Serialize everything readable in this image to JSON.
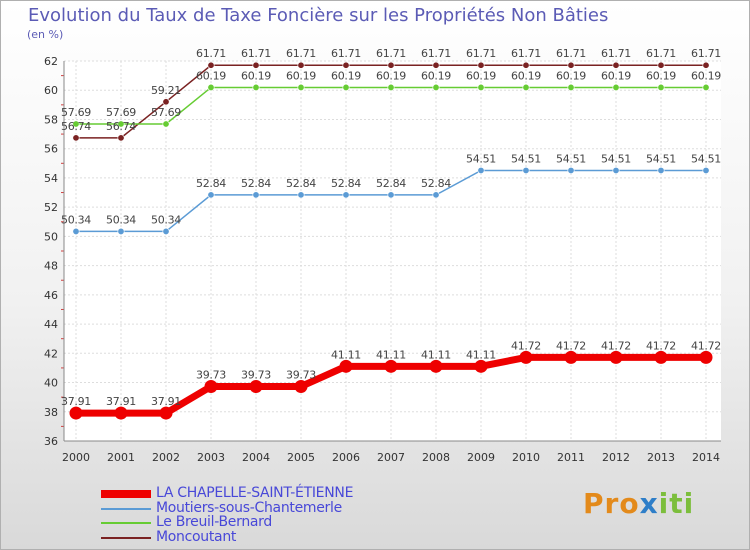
{
  "title": "Evolution du Taux de Taxe Foncière sur les Propriétés Non Bâties",
  "unit_label": "(en %)",
  "brand": {
    "text": "Proxiti",
    "letters": [
      "P",
      "r",
      "o",
      "x",
      "i",
      "t",
      "i"
    ],
    "colors": [
      "#e38a1b",
      "#e38a1b",
      "#e38a1b",
      "#2e7ec8",
      "#7cbe3c",
      "#7cbe3c",
      "#7cbe3c"
    ]
  },
  "chart_data": {
    "type": "line",
    "title": "Evolution du Taux de Taxe Foncière sur les Propriétés Non Bâties",
    "ylabel": "(en %)",
    "xlabel": "",
    "x": [
      "2000",
      "2001",
      "2002",
      "2003",
      "2004",
      "2005",
      "2006",
      "2007",
      "2008",
      "2009",
      "2010",
      "2011",
      "2012",
      "2013",
      "2014"
    ],
    "ylim": [
      36,
      62
    ],
    "yticks": [
      "36",
      "38",
      "40",
      "42",
      "44",
      "46",
      "48",
      "50",
      "52",
      "54",
      "56",
      "58",
      "60",
      "62"
    ],
    "grid": true,
    "legend_position": "bottom-left",
    "series": [
      {
        "name": "LA CHAPELLE-SAINT-ÉTIENNE",
        "color": "#ee0000",
        "highlight": true,
        "values": [
          37.91,
          37.91,
          37.91,
          39.73,
          39.73,
          39.73,
          41.11,
          41.11,
          41.11,
          41.11,
          41.72,
          41.72,
          41.72,
          41.72,
          41.72
        ],
        "labels": [
          "37.91",
          "37.91",
          "37.91",
          "39.73",
          "39.73",
          "39.73",
          "41.11",
          "41.11",
          "41.11",
          "41.11",
          "41.72",
          "41.72",
          "41.72",
          "41.72",
          "41.72"
        ]
      },
      {
        "name": "Moutiers-sous-Chantemerle",
        "color": "#5b9bd5",
        "highlight": false,
        "values": [
          50.34,
          50.34,
          50.34,
          52.84,
          52.84,
          52.84,
          52.84,
          52.84,
          52.84,
          54.51,
          54.51,
          54.51,
          54.51,
          54.51,
          54.51
        ],
        "labels": [
          "50.34",
          "50.34",
          "50.34",
          "52.84",
          "52.84",
          "52.84",
          "52.84",
          "52.84",
          "52.84",
          "54.51",
          "54.51",
          "54.51",
          "54.51",
          "54.51",
          "54.51"
        ]
      },
      {
        "name": "Le Breuil-Bernard",
        "color": "#66cc33",
        "highlight": false,
        "values": [
          57.69,
          57.69,
          57.69,
          60.19,
          60.19,
          60.19,
          60.19,
          60.19,
          60.19,
          60.19,
          60.19,
          60.19,
          60.19,
          60.19,
          60.19
        ],
        "labels": [
          "57.69",
          "57.69",
          "57.69",
          "60.19",
          "60.19",
          "60.19",
          "60.19",
          "60.19",
          "60.19",
          "60.19",
          "60.19",
          "60.19",
          "60.19",
          "60.19",
          "60.19"
        ]
      },
      {
        "name": "Moncoutant",
        "color": "#7a2222",
        "highlight": false,
        "values": [
          56.74,
          56.74,
          59.21,
          61.71,
          61.71,
          61.71,
          61.71,
          61.71,
          61.71,
          61.71,
          61.71,
          61.71,
          61.71,
          61.71,
          61.71
        ],
        "labels": [
          "56.74",
          "56.74",
          "59.21",
          "61.71",
          "61.71",
          "61.71",
          "61.71",
          "61.71",
          "61.71",
          "61.71",
          "61.71",
          "61.71",
          "61.71",
          "61.71",
          "61.71"
        ]
      }
    ]
  }
}
